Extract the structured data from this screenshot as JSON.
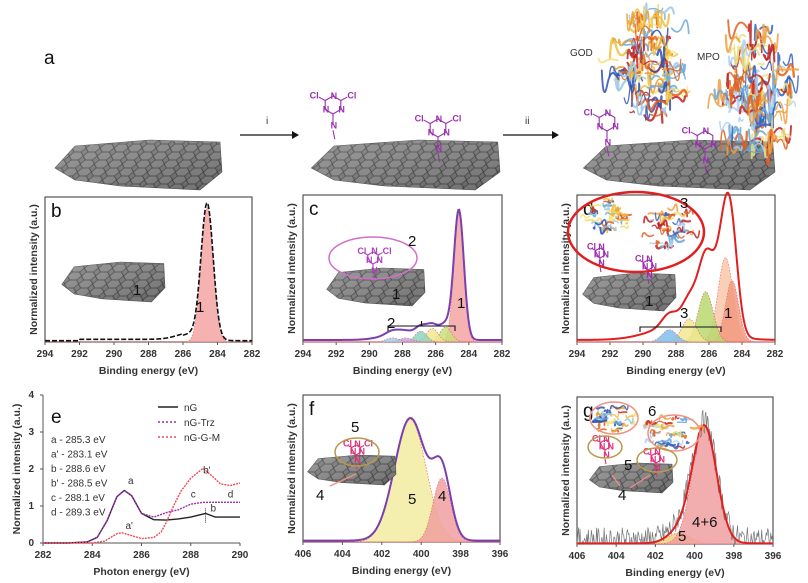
{
  "figure": {
    "panel_a_letter": "a",
    "step_i": "i",
    "step_ii": "ii",
    "protein_labels": [
      "GOD",
      "MPO"
    ],
    "molecule": {
      "cl_label": "Cl",
      "n_label": "N"
    },
    "colors": {
      "molecule": "#9b2fae",
      "sheet": "#6e6e6e",
      "ellipse_c": "#d070c8",
      "ellipse_d": "#e02020",
      "ellipse_tan": "#b89a4a",
      "ellipse_salmon": "#f09080"
    }
  },
  "chart_data": [
    {
      "panel": "b",
      "type": "area",
      "xlabel": "Binding energy (eV)",
      "ylabel": "Normalized intensity (a.u.)",
      "xlim": [
        294,
        282
      ],
      "xticks": [
        "294",
        "292",
        "290",
        "288",
        "286",
        "284",
        "282"
      ],
      "envelope_color": "#111111",
      "envelope_style": "dashed",
      "components": [
        {
          "label": "1",
          "center": 284.6,
          "height": 1.0,
          "sigma": 0.35,
          "color": "#f4a3a3"
        }
      ],
      "annotations": [
        "1"
      ],
      "inset_labels": [
        "1"
      ]
    },
    {
      "panel": "c",
      "type": "area",
      "xlabel": "Binding energy (eV)",
      "ylabel": "Normalized intensity (a.u.)",
      "xlim": [
        294,
        282
      ],
      "xticks": [
        "294",
        "292",
        "290",
        "288",
        "286",
        "284",
        "282"
      ],
      "envelope_color": "#7b3fb0",
      "envelope_style": "solid",
      "components": [
        {
          "label": "1",
          "center": 284.6,
          "height": 0.95,
          "sigma": 0.3,
          "color": "#f4a3a3"
        },
        {
          "label": "2",
          "center": 285.4,
          "height": 0.11,
          "sigma": 0.35,
          "color": "#c8e07a"
        },
        {
          "label": "2",
          "center": 286.2,
          "height": 0.1,
          "sigma": 0.35,
          "color": "#f0e890"
        },
        {
          "label": "2",
          "center": 286.9,
          "height": 0.08,
          "sigma": 0.35,
          "color": "#8fd4c0"
        },
        {
          "label": "2",
          "center": 287.8,
          "height": 0.03,
          "sigma": 0.4,
          "color": "#c7a6e6"
        },
        {
          "label": "2",
          "center": 288.6,
          "height": 0.03,
          "sigma": 0.4,
          "color": "#9fd0f0"
        }
      ],
      "annotations": [
        "1",
        "2"
      ],
      "inset_labels": [
        "2",
        "1"
      ]
    },
    {
      "panel": "d",
      "type": "area",
      "xlabel": "Binding energy (eV)",
      "ylabel": "Normalized intensity (a.u.)",
      "xlim": [
        294,
        282
      ],
      "xticks": [
        "294",
        "292",
        "290",
        "288",
        "286",
        "284",
        "282"
      ],
      "envelope_color": "#e02020",
      "envelope_style": "solid",
      "components": [
        {
          "label": "1",
          "center": 285.0,
          "height": 0.62,
          "sigma": 0.45,
          "color": "#f8c7a8"
        },
        {
          "label": "1",
          "center": 284.6,
          "height": 0.45,
          "sigma": 0.4,
          "color": "#f29a80"
        },
        {
          "label": "3",
          "center": 286.2,
          "height": 0.37,
          "sigma": 0.45,
          "color": "#b8d870"
        },
        {
          "label": "3",
          "center": 287.2,
          "height": 0.17,
          "sigma": 0.45,
          "color": "#f0e890"
        },
        {
          "label": "3",
          "center": 288.4,
          "height": 0.09,
          "sigma": 0.45,
          "color": "#80c0ee"
        }
      ],
      "annotations": [
        "1",
        "3"
      ],
      "inset_labels": [
        "3",
        "1"
      ]
    },
    {
      "panel": "e",
      "type": "line",
      "xlabel": "Photon energy (eV)",
      "ylabel": "Normalized intensity (a.u.)",
      "xlim": [
        282,
        290
      ],
      "ylim": [
        0,
        4
      ],
      "xticks": [
        "282",
        "284",
        "286",
        "288",
        "290"
      ],
      "yticks": [
        "0",
        "1",
        "2",
        "3",
        "4"
      ],
      "legend_position": "top-right",
      "series": [
        {
          "name": "nG",
          "color": "#222222",
          "x": [
            282,
            283,
            283.8,
            284.2,
            284.6,
            285,
            285.3,
            285.6,
            286,
            286.5,
            287,
            287.5,
            288,
            288.6,
            289,
            289.5,
            290
          ],
          "y": [
            0,
            0,
            0.03,
            0.15,
            0.6,
            1.25,
            1.42,
            1.28,
            0.8,
            0.63,
            0.62,
            0.65,
            0.7,
            0.8,
            0.7,
            0.7,
            0.7
          ]
        },
        {
          "name": "nG-Trz",
          "color": "#9b2fae",
          "x": [
            282,
            283,
            283.8,
            284.2,
            284.6,
            285,
            285.3,
            285.6,
            286,
            286.5,
            287,
            287.5,
            288,
            288.5,
            289,
            289.5,
            290
          ],
          "y": [
            0,
            0,
            0.03,
            0.15,
            0.6,
            1.25,
            1.42,
            1.28,
            0.8,
            0.7,
            0.82,
            0.9,
            1.05,
            1.1,
            1.1,
            1.1,
            1.1
          ]
        },
        {
          "name": "nG-G-M",
          "color": "#f04a5a",
          "x": [
            282,
            283,
            284,
            284.5,
            285,
            285.2,
            285.6,
            286,
            286.5,
            286.8,
            287,
            287.3,
            287.6,
            288,
            288.5,
            288.8,
            289.2,
            289.6,
            290
          ],
          "y": [
            0,
            0,
            0,
            0.05,
            0.25,
            0.28,
            0.2,
            0.12,
            0.15,
            0.3,
            0.55,
            1.0,
            1.4,
            1.75,
            2.02,
            1.85,
            1.6,
            1.55,
            1.62
          ]
        }
      ],
      "point_labels": [
        "a",
        "a'",
        "b",
        "b'",
        "c",
        "d"
      ],
      "annotation_list": [
        "a - 285.3 eV",
        "a' - 283.1 eV",
        "b - 288.6 eV",
        "b' - 288.5 eV",
        "c - 288.1 eV",
        "d - 289.3 eV"
      ]
    },
    {
      "panel": "f",
      "type": "area",
      "xlabel": "Binding energy (eV)",
      "ylabel": "Normalized intensity (a.u.)",
      "xlim": [
        406,
        396
      ],
      "xticks": [
        "406",
        "404",
        "402",
        "400",
        "398",
        "396"
      ],
      "envelope_color": "#7b3fb0",
      "envelope_style": "solid",
      "components": [
        {
          "label": "5",
          "center": 400.55,
          "height": 0.9,
          "sigma": 0.8,
          "color": "#f2eca0"
        },
        {
          "label": "4",
          "center": 398.95,
          "height": 0.47,
          "sigma": 0.45,
          "color": "#f0a0a0"
        }
      ],
      "annotations": [
        "5",
        "4"
      ],
      "inset_labels": [
        "5",
        "4"
      ]
    },
    {
      "panel": "g",
      "type": "area",
      "xlabel": "Binding energy (eV)",
      "ylabel": "Normalized intensity (a.u.)",
      "xlim": [
        406,
        396
      ],
      "xticks": [
        "406",
        "404",
        "402",
        "400",
        "398",
        "396"
      ],
      "envelope_color": "#e02020",
      "envelope_style": "solid",
      "components": [
        {
          "label": "5",
          "center": 400.8,
          "height": 0.08,
          "sigma": 0.6,
          "color": "#f0d080"
        },
        {
          "label": "4+6",
          "center": 399.5,
          "height": 0.86,
          "sigma": 0.62,
          "color": "#f0a0a0"
        }
      ],
      "raw_data_color": "#777777",
      "annotations": [
        "4+6",
        "5"
      ],
      "inset_labels": [
        "6",
        "5",
        "4"
      ]
    }
  ]
}
